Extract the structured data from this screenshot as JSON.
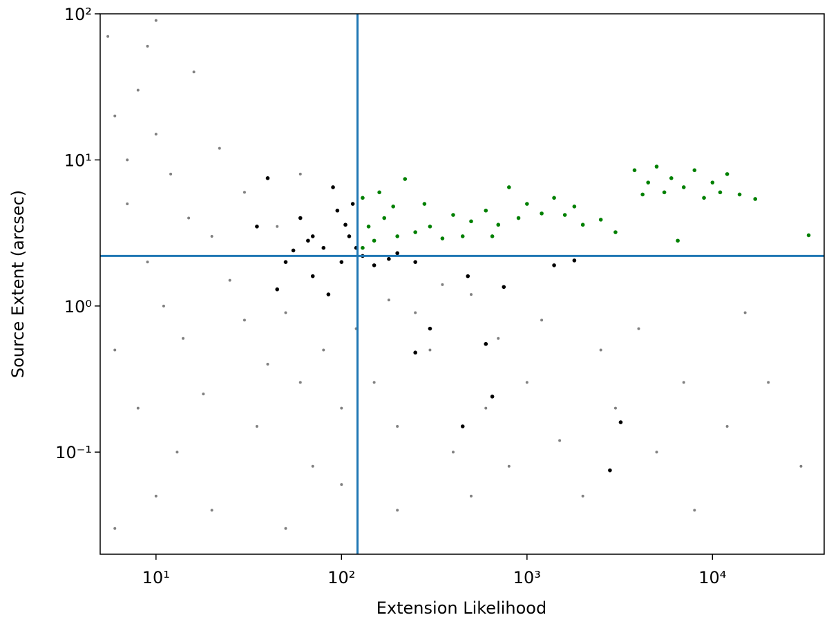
{
  "chart_data": {
    "type": "scatter",
    "xlabel": "Extension Likelihood",
    "ylabel": "Source Extent (arcsec)",
    "xscale": "log",
    "yscale": "log",
    "xlim": [
      5,
      40000
    ],
    "ylim": [
      0.02,
      100
    ],
    "xticks": [
      {
        "value": 10,
        "label": "10¹"
      },
      {
        "value": 100,
        "label": "10²"
      },
      {
        "value": 1000,
        "label": "10³"
      },
      {
        "value": 10000,
        "label": "10⁴"
      }
    ],
    "yticks": [
      {
        "value": 0.1,
        "label": "10⁻¹"
      },
      {
        "value": 1,
        "label": "10⁰"
      },
      {
        "value": 10,
        "label": "10¹"
      },
      {
        "value": 100,
        "label": "10²"
      }
    ],
    "vline": 122,
    "hline": 2.2,
    "line_color": "#1f77b4",
    "series": [
      {
        "color": "#808080",
        "x": [
          6,
          8,
          10,
          12,
          7,
          9,
          15,
          20,
          11,
          6,
          8,
          14,
          25,
          30,
          40,
          50,
          60,
          80,
          100,
          150,
          200,
          300,
          400,
          600,
          800,
          1000,
          1500,
          2000,
          3000,
          5000,
          8000,
          12000,
          20000,
          30000,
          6,
          10,
          20,
          50,
          100,
          200,
          500,
          13,
          18,
          35,
          70,
          120,
          180,
          250,
          350,
          500,
          700,
          1200,
          2500,
          4000,
          7000,
          15000,
          9,
          16,
          22,
          30,
          45,
          60,
          10,
          5.5,
          7
        ],
        "y": [
          20,
          30,
          15,
          8,
          5,
          2,
          4,
          3,
          1,
          0.5,
          0.2,
          0.6,
          1.5,
          0.8,
          0.4,
          0.9,
          0.3,
          0.5,
          0.2,
          0.3,
          0.15,
          0.5,
          0.1,
          0.2,
          0.08,
          0.3,
          0.12,
          0.05,
          0.2,
          0.1,
          0.04,
          0.15,
          0.3,
          0.08,
          0.03,
          0.05,
          0.04,
          0.03,
          0.06,
          0.04,
          0.05,
          0.1,
          0.25,
          0.15,
          0.08,
          0.7,
          1.1,
          0.9,
          1.4,
          1.2,
          0.6,
          0.8,
          0.5,
          0.7,
          0.3,
          0.9,
          60,
          40,
          12,
          6,
          3.5,
          8,
          90,
          70,
          10
        ]
      },
      {
        "color": "#000000",
        "x": [
          35,
          40,
          50,
          60,
          70,
          80,
          90,
          100,
          110,
          120,
          130,
          150,
          180,
          200,
          250,
          45,
          70,
          95,
          115,
          85,
          300,
          450,
          650,
          1400,
          1800,
          3200,
          2800,
          250,
          600,
          480,
          750,
          66,
          105,
          55
        ],
        "y": [
          3.5,
          7.5,
          2,
          4,
          3,
          2.5,
          6.5,
          2,
          3,
          2.5,
          2.2,
          1.9,
          2.1,
          2.3,
          2,
          1.3,
          1.6,
          4.5,
          5,
          1.2,
          0.7,
          0.15,
          0.24,
          1.9,
          2.05,
          0.16,
          0.075,
          0.48,
          0.55,
          1.6,
          1.35,
          2.8,
          3.6,
          2.4
        ]
      },
      {
        "color": "#008000",
        "x": [
          130,
          140,
          150,
          170,
          200,
          220,
          250,
          300,
          350,
          400,
          500,
          600,
          700,
          800,
          900,
          1000,
          1200,
          1400,
          1600,
          1800,
          2000,
          2500,
          3000,
          130,
          160,
          190,
          280,
          450,
          650,
          3800,
          4500,
          5000,
          5500,
          6000,
          7000,
          8000,
          9000,
          10000,
          11000,
          12000,
          14000,
          17000,
          33000,
          6500,
          4200
        ],
        "y": [
          2.5,
          3.5,
          2.8,
          4,
          3,
          7.4,
          3.2,
          3.5,
          2.9,
          4.2,
          3.8,
          4.5,
          3.6,
          6.5,
          4,
          5,
          4.3,
          5.5,
          4.2,
          4.8,
          3.6,
          3.9,
          3.2,
          5.5,
          6,
          4.8,
          5,
          3,
          3,
          8.5,
          7,
          9,
          6,
          7.5,
          6.5,
          8.5,
          5.5,
          7,
          6,
          8,
          5.8,
          5.4,
          3.05,
          2.8,
          5.8
        ]
      }
    ]
  }
}
